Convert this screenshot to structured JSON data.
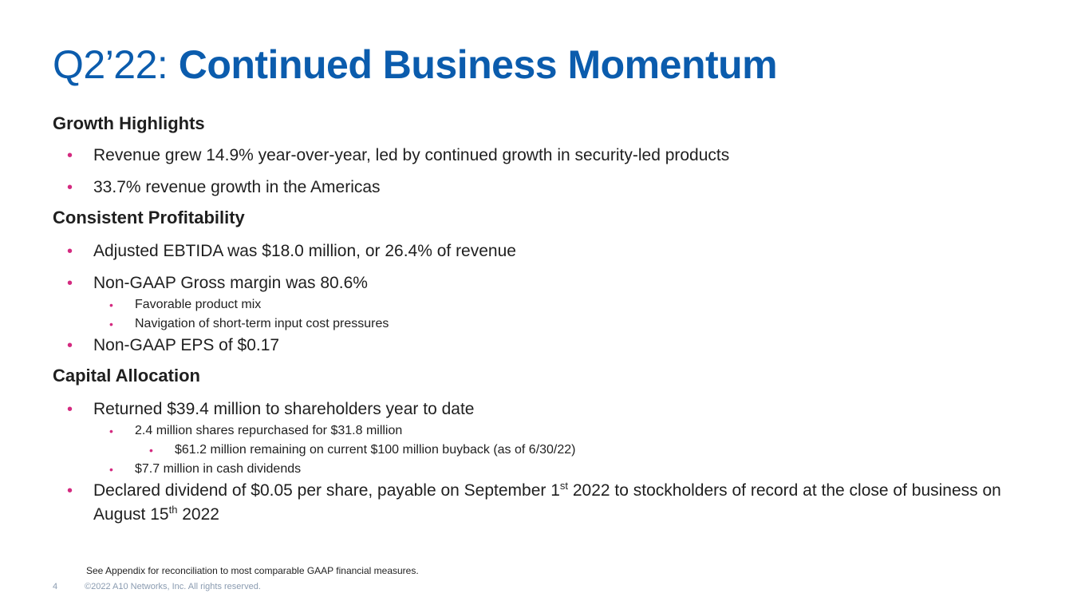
{
  "title": {
    "prefix": "Q2’22: ",
    "main": "Continued Business Momentum"
  },
  "sections": {
    "growth": {
      "heading": "Growth Highlights",
      "item1": "Revenue grew 14.9% year-over-year, led by continued growth in security-led products",
      "item2": "33.7% revenue growth in the Americas"
    },
    "profitability": {
      "heading": "Consistent Profitability",
      "item1": "Adjusted EBTIDA was $18.0 million, or 26.4% of revenue",
      "item2": "Non-GAAP Gross margin was 80.6%",
      "item2_sub1": "Favorable product mix",
      "item2_sub2": "Navigation of short-term input cost pressures",
      "item3": "Non-GAAP EPS of $0.17"
    },
    "capital": {
      "heading": "Capital Allocation",
      "item1": "Returned $39.4 million to shareholders year to date",
      "item1_sub1": "2.4 million shares repurchased for $31.8 million",
      "item1_sub1_sub1": "$61.2 million remaining on current $100 million buyback (as of 6/30/22)",
      "item1_sub2": "$7.7 million in cash dividends",
      "item2_part1": "Declared dividend of $0.05 per share, payable on September 1",
      "item2_sup1": "st",
      "item2_part2": " 2022 to stockholders of record at the close of business on August 15",
      "item2_sup2": "th",
      "item2_part3": " 2022"
    }
  },
  "footnote": "See Appendix for reconciliation to most comparable GAAP financial measures.",
  "footer": {
    "page_number": "4",
    "copyright": "©2022 A10 Networks, Inc. All rights reserved."
  },
  "colors": {
    "title": "#0b5cad",
    "bullet": "#d42a80",
    "footer": "#8a9bb0"
  }
}
